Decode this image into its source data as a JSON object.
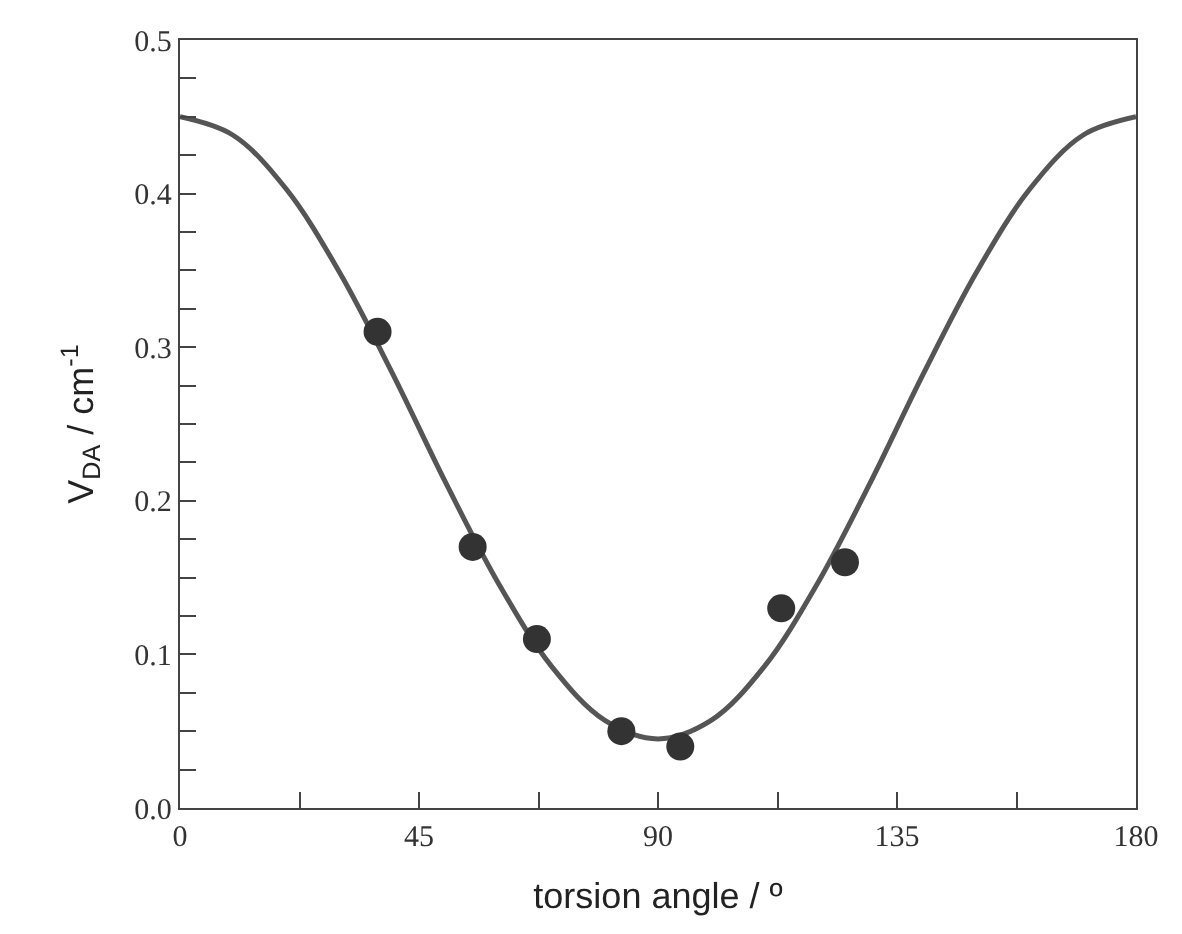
{
  "chart_data": {
    "type": "scatter",
    "xlabel": "torsion angle / º",
    "ylabel": "V$_{DA}$ / cm$^{-1}$",
    "xlim": [
      0,
      180
    ],
    "ylim": [
      0,
      0.5
    ],
    "marker": "circle",
    "xticks": [
      0,
      {
        "value": 22.5,
        "label": null
      },
      45,
      {
        "value": 67.5,
        "label": null
      },
      90,
      {
        "value": 112.5,
        "label": null
      },
      135,
      {
        "value": 157.5,
        "label": null
      },
      180
    ],
    "yticks": [
      {
        "value": 0,
        "label": "0.0"
      },
      {
        "value": 0.025,
        "label": null
      },
      {
        "value": 0.05,
        "label": null
      },
      {
        "value": 0.075,
        "label": null
      },
      0.1,
      {
        "value": 0.125,
        "label": null
      },
      {
        "value": 0.15,
        "label": null
      },
      {
        "value": 0.175,
        "label": null
      },
      0.2,
      {
        "value": 0.225,
        "label": null
      },
      {
        "value": 0.25,
        "label": null
      },
      {
        "value": 0.275,
        "label": null
      },
      0.3,
      {
        "value": 0.325,
        "label": null
      },
      {
        "value": 0.35,
        "label": null
      },
      {
        "value": 0.375,
        "label": null
      },
      0.4,
      {
        "value": 0.425,
        "label": null
      },
      {
        "value": 0.45,
        "label": null
      },
      {
        "value": 0.475,
        "label": null
      },
      0.5
    ],
    "series": [
      {
        "type": "line",
        "color": "#555555",
        "marker": "none",
        "x": [
          0,
          10,
          20,
          30,
          40,
          50,
          60,
          70,
          80,
          90,
          100,
          110,
          120,
          130,
          140,
          150,
          160,
          170,
          180
        ],
        "values": [
          0.45,
          0.438,
          0.403,
          0.349,
          0.283,
          0.212,
          0.146,
          0.092,
          0.057,
          0.045,
          0.057,
          0.092,
          0.146,
          0.212,
          0.283,
          0.349,
          0.403,
          0.438,
          0.45
        ]
      },
      {
        "color": "#333333",
        "x": [
          37.2,
          55.1,
          67.2,
          83.1,
          94.2,
          113.2,
          125.2
        ],
        "values": [
          0.31,
          0.17,
          0.11,
          0.05,
          0.04,
          0.13,
          0.16
        ]
      }
    ]
  }
}
